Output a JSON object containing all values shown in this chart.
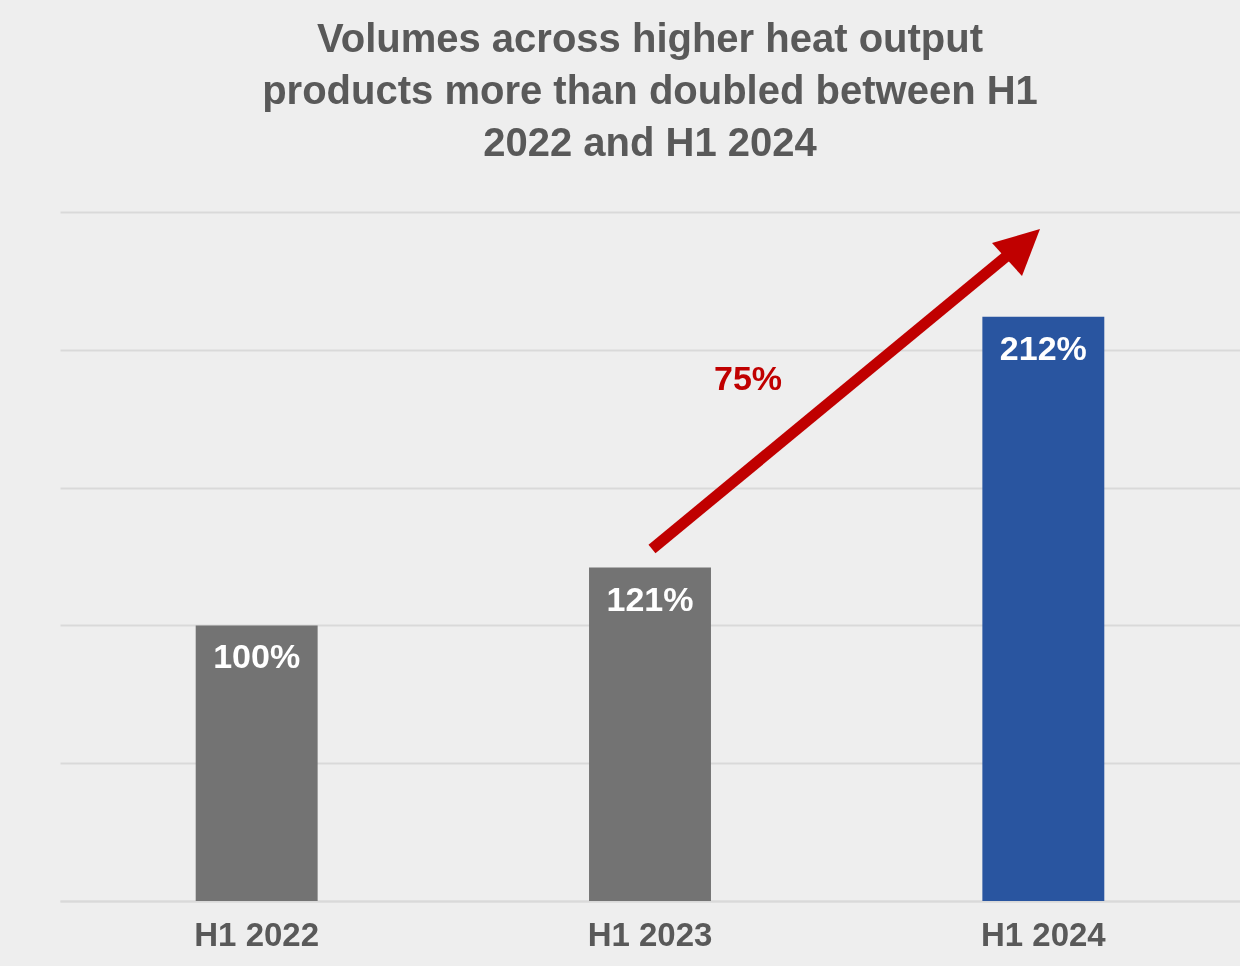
{
  "chart_data": {
    "type": "bar",
    "title": "Volumes across higher heat output products more than doubled between H1 2022 and H1 2024",
    "categories": [
      "H1 2022",
      "H1 2023",
      "H1 2024"
    ],
    "values": [
      100,
      121,
      212
    ],
    "colors": [
      "#737373",
      "#737373",
      "#2955a0"
    ],
    "value_labels": [
      "100%",
      "121%",
      "212%"
    ],
    "ylim": [
      0,
      250
    ],
    "yticks": [
      0,
      50,
      100,
      150,
      200,
      250
    ],
    "grid": "y",
    "tick_labels": "x",
    "annotations": [
      "75%"
    ]
  }
}
